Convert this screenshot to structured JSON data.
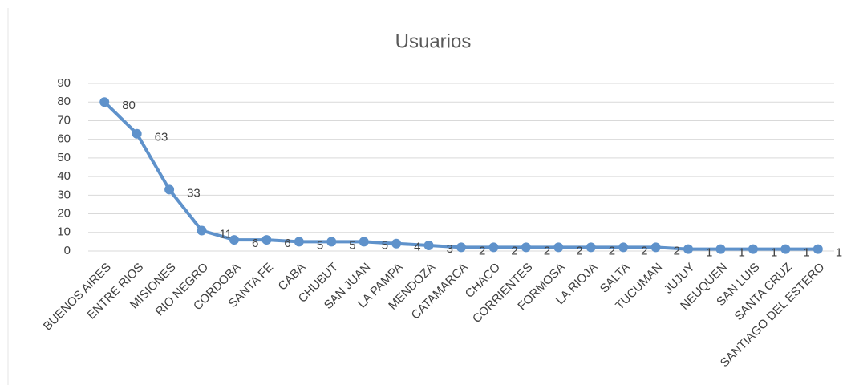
{
  "chart_data": {
    "type": "line",
    "title": "Usuarios",
    "categories": [
      "BUENOS AIRES",
      "ENTRE RIOS",
      "MISIONES",
      "RIO NEGRO",
      "CORDOBA",
      "SANTA FE",
      "CABA",
      "CHUBUT",
      "SAN JUAN",
      "LA PAMPA",
      "MENDOZA",
      "CATAMARCA",
      "CHACO",
      "CORRIENTES",
      "FORMOSA",
      "LA RIOJA",
      "SALTA",
      "TUCUMAN",
      "JUJUY",
      "NEUQUEN",
      "SAN LUIS",
      "SANTA CRUZ",
      "SANTIAGO DEL ESTERO"
    ],
    "series": [
      {
        "name": "Usuarios",
        "color": "#5f92cb",
        "values": [
          80,
          63,
          33,
          11,
          6,
          6,
          5,
          5,
          5,
          4,
          3,
          2,
          2,
          2,
          2,
          2,
          2,
          2,
          1,
          1,
          1,
          1,
          1
        ]
      }
    ],
    "ylim": [
      0,
      90
    ],
    "yticks": [
      0,
      10,
      20,
      30,
      40,
      50,
      60,
      70,
      80,
      90
    ],
    "grid": true
  }
}
